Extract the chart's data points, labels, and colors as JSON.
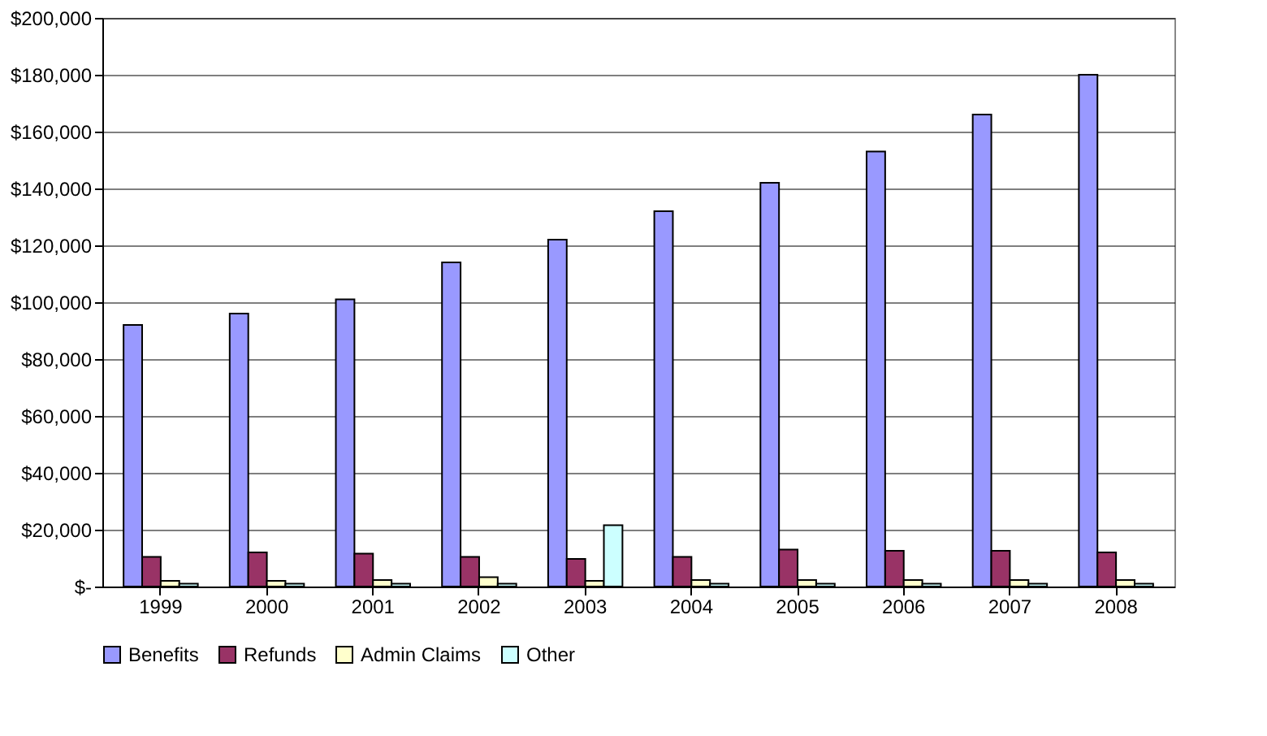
{
  "chart_data": {
    "type": "bar",
    "categories": [
      "1999",
      "2000",
      "2001",
      "2002",
      "2003",
      "2004",
      "2005",
      "2006",
      "2007",
      "2008"
    ],
    "series": [
      {
        "name": "Benefits",
        "color": "#9999ff",
        "values": [
          92000,
          96000,
          101000,
          114000,
          122000,
          132000,
          142000,
          153000,
          166000,
          180000
        ]
      },
      {
        "name": "Refunds",
        "color": "#993366",
        "values": [
          10400,
          12000,
          11600,
          10400,
          9700,
          10400,
          13000,
          12600,
          12600,
          12000
        ]
      },
      {
        "name": "Admin Claims",
        "color": "#ffffcc",
        "values": [
          2000,
          2000,
          2300,
          3300,
          2000,
          2300,
          2300,
          2300,
          2300,
          2300
        ]
      },
      {
        "name": "Other",
        "color": "#ccffff",
        "values": [
          1000,
          1000,
          1000,
          1000,
          21600,
          1000,
          1000,
          1000,
          1000,
          1000
        ]
      }
    ],
    "ylim": [
      0,
      200000
    ],
    "yticks": [
      {
        "value": 0,
        "label": "$-"
      },
      {
        "value": 20000,
        "label": "$20,000"
      },
      {
        "value": 40000,
        "label": "$40,000"
      },
      {
        "value": 60000,
        "label": "$60,000"
      },
      {
        "value": 80000,
        "label": "$80,000"
      },
      {
        "value": 100000,
        "label": "$100,000"
      },
      {
        "value": 120000,
        "label": "$120,000"
      },
      {
        "value": 140000,
        "label": "$140,000"
      },
      {
        "value": 160000,
        "label": "$160,000"
      },
      {
        "value": 180000,
        "label": "$180,000"
      },
      {
        "value": 200000,
        "label": "$200,000"
      }
    ],
    "grid": "y",
    "legend": "bottom"
  }
}
